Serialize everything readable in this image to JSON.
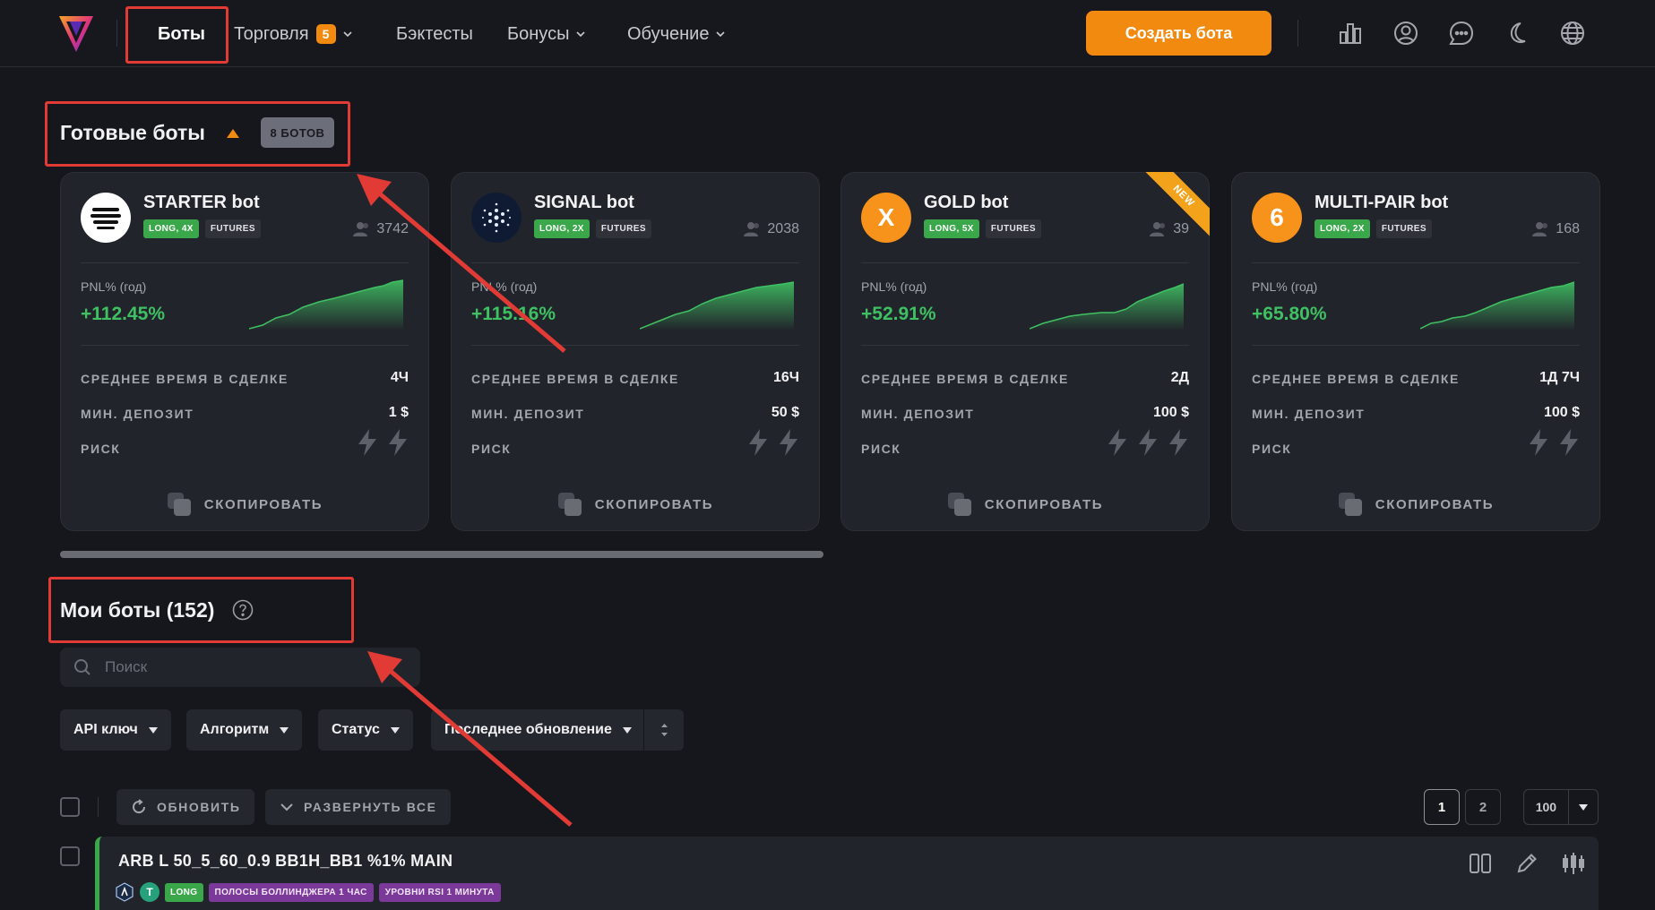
{
  "header": {
    "nav": [
      {
        "label": "Боты",
        "active": true
      },
      {
        "label": "Торговля",
        "badge": "5"
      },
      {
        "label": "Бэктесты"
      },
      {
        "label": "Бонусы"
      },
      {
        "label": "Обучение"
      }
    ],
    "create_button": "Создать бота",
    "icons": [
      "chart-bar-icon",
      "user-icon",
      "chat-icon",
      "moon-icon",
      "globe-icon"
    ]
  },
  "ready_bots": {
    "title": "Готовые боты",
    "count_badge": "8 БОТОВ",
    "cards": [
      {
        "name": "STARTER bot",
        "tags": [
          "LONG, 4X",
          "FUTURES"
        ],
        "users": "3742",
        "pnl_label": "PNL% (год)",
        "pnl_value": "+112.45%",
        "avg_time_label": "СРЕДНЕЕ ВРЕМЯ В СДЕЛКЕ",
        "avg_time": "4Ч",
        "min_deposit_label": "МИН. ДЕПОЗИТ",
        "min_deposit": "1 $",
        "risk_label": "РИСК",
        "risk_level": 2,
        "copy_label": "СКОПИРОВАТЬ",
        "avatar_color": "#ffffff"
      },
      {
        "name": "SIGNAL bot",
        "tags": [
          "LONG, 2X",
          "FUTURES"
        ],
        "users": "2038",
        "pnl_label": "PNL% (год)",
        "pnl_value": "+115.16%",
        "avg_time_label": "СРЕДНЕЕ ВРЕМЯ В СДЕЛКЕ",
        "avg_time": "16Ч",
        "min_deposit_label": "МИН. ДЕПОЗИТ",
        "min_deposit": "50 $",
        "risk_label": "РИСК",
        "risk_level": 2,
        "copy_label": "СКОПИРОВАТЬ",
        "avatar_color": "#0e1b33"
      },
      {
        "name": "GOLD bot",
        "tags": [
          "LONG, 5X",
          "FUTURES"
        ],
        "users": "39",
        "pnl_label": "PNL% (год)",
        "pnl_value": "+52.91%",
        "avg_time_label": "СРЕДНЕЕ ВРЕМЯ В СДЕЛКЕ",
        "avg_time": "2Д",
        "min_deposit_label": "МИН. ДЕПОЗИТ",
        "min_deposit": "100 $",
        "risk_label": "РИСК",
        "risk_level": 3,
        "copy_label": "СКОПИРОВАТЬ",
        "avatar_text": "X",
        "avatar_color": "#f7931a",
        "ribbon": "NEW"
      },
      {
        "name": "MULTI-PAIR bot",
        "tags": [
          "LONG, 2X",
          "FUTURES"
        ],
        "users": "168",
        "pnl_label": "PNL% (год)",
        "pnl_value": "+65.80%",
        "avg_time_label": "СРЕДНЕЕ ВРЕМЯ В СДЕЛКЕ",
        "avg_time": "1Д 7Ч",
        "min_deposit_label": "МИН. ДЕПОЗИТ",
        "min_deposit": "100 $",
        "risk_label": "РИСК",
        "risk_level": 2,
        "copy_label": "СКОПИРОВАТЬ",
        "avatar_text": "6",
        "avatar_color": "#f7931a"
      }
    ]
  },
  "my_bots": {
    "title": "Мои боты (152)",
    "search_placeholder": "Поиск",
    "filters": [
      "API ключ",
      "Алгоритм",
      "Статус",
      "Последнее обновление"
    ],
    "refresh_label": "ОБНОВИТЬ",
    "expand_label": "РАЗВЕРНУТЬ ВСЕ",
    "pages": [
      "1",
      "2"
    ],
    "per_page": "100",
    "rows": [
      {
        "name": "ARB L 50_5_60_0.9 BB1H_BB1 %1% MAIN",
        "side": "LONG",
        "tags": [
          "ПОЛОСЫ БОЛЛИНДЖЕРА 1 ЧАС",
          "УРОВНИ RSI 1 МИНУТА"
        ],
        "coin_letter": "T"
      }
    ]
  },
  "colors": {
    "accent": "#f28a0f",
    "positive": "#3fc163",
    "annotation": "#e23b35"
  }
}
